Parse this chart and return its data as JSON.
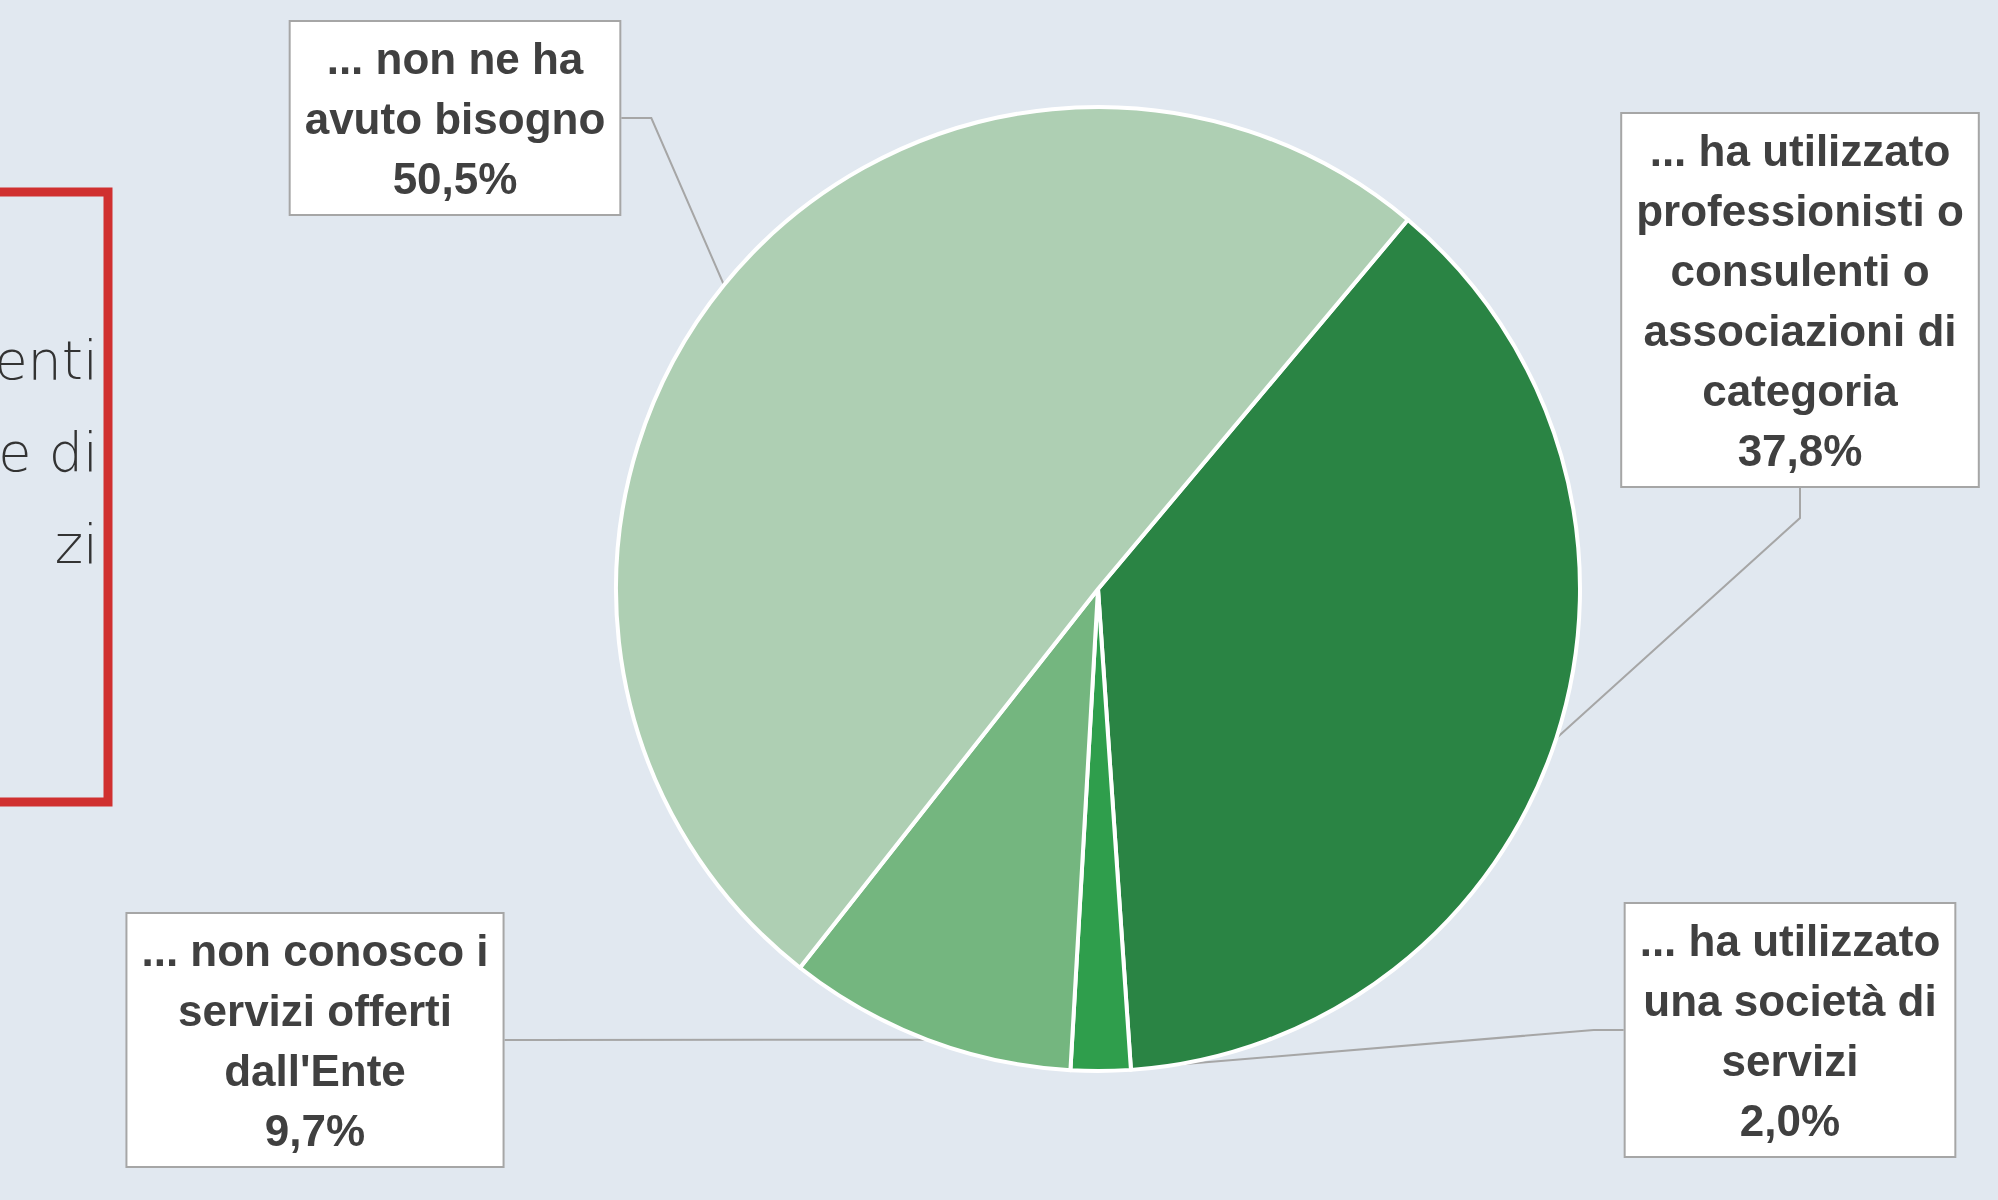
{
  "chart_data": {
    "type": "pie",
    "categories": [
      "... ha utilizzato professionisti o consulenti o associazioni di categoria",
      "... ha utilizzato una società di servizi",
      "... non conosco i servizi offerti dall'Ente",
      "... non ne ha avuto bisogno"
    ],
    "values": [
      37.8,
      2.0,
      9.7,
      50.5
    ],
    "value_labels": [
      "37,8%",
      "2,0%",
      "9,7%",
      "50,5%"
    ],
    "colors": [
      "#2a8444",
      "#2f9e4c",
      "#74b67f",
      "#aecfb3"
    ],
    "annotations": [
      "enti",
      "e di",
      "zi"
    ],
    "legend": false
  }
}
